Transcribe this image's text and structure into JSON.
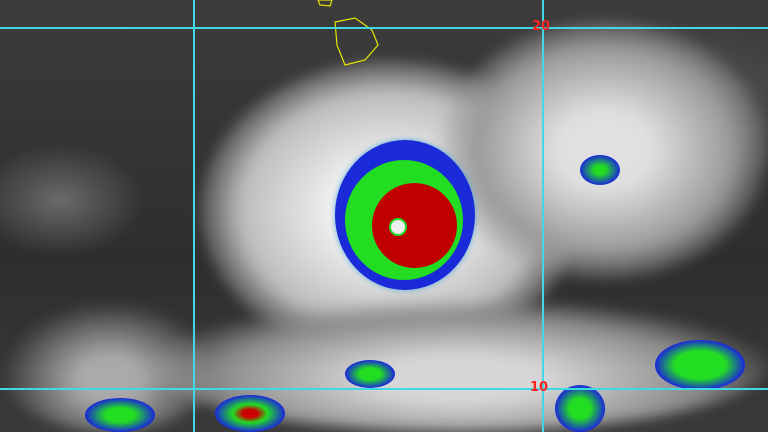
{
  "latitude_labels": {
    "north": "20",
    "south": "10"
  },
  "colors": {
    "grid": "#3fd9e6",
    "label": "#ff2020",
    "coastline": "#e6e600",
    "cold_tops_red": "#c00000",
    "green": "#22dd22",
    "blue": "#1a2ad8"
  }
}
